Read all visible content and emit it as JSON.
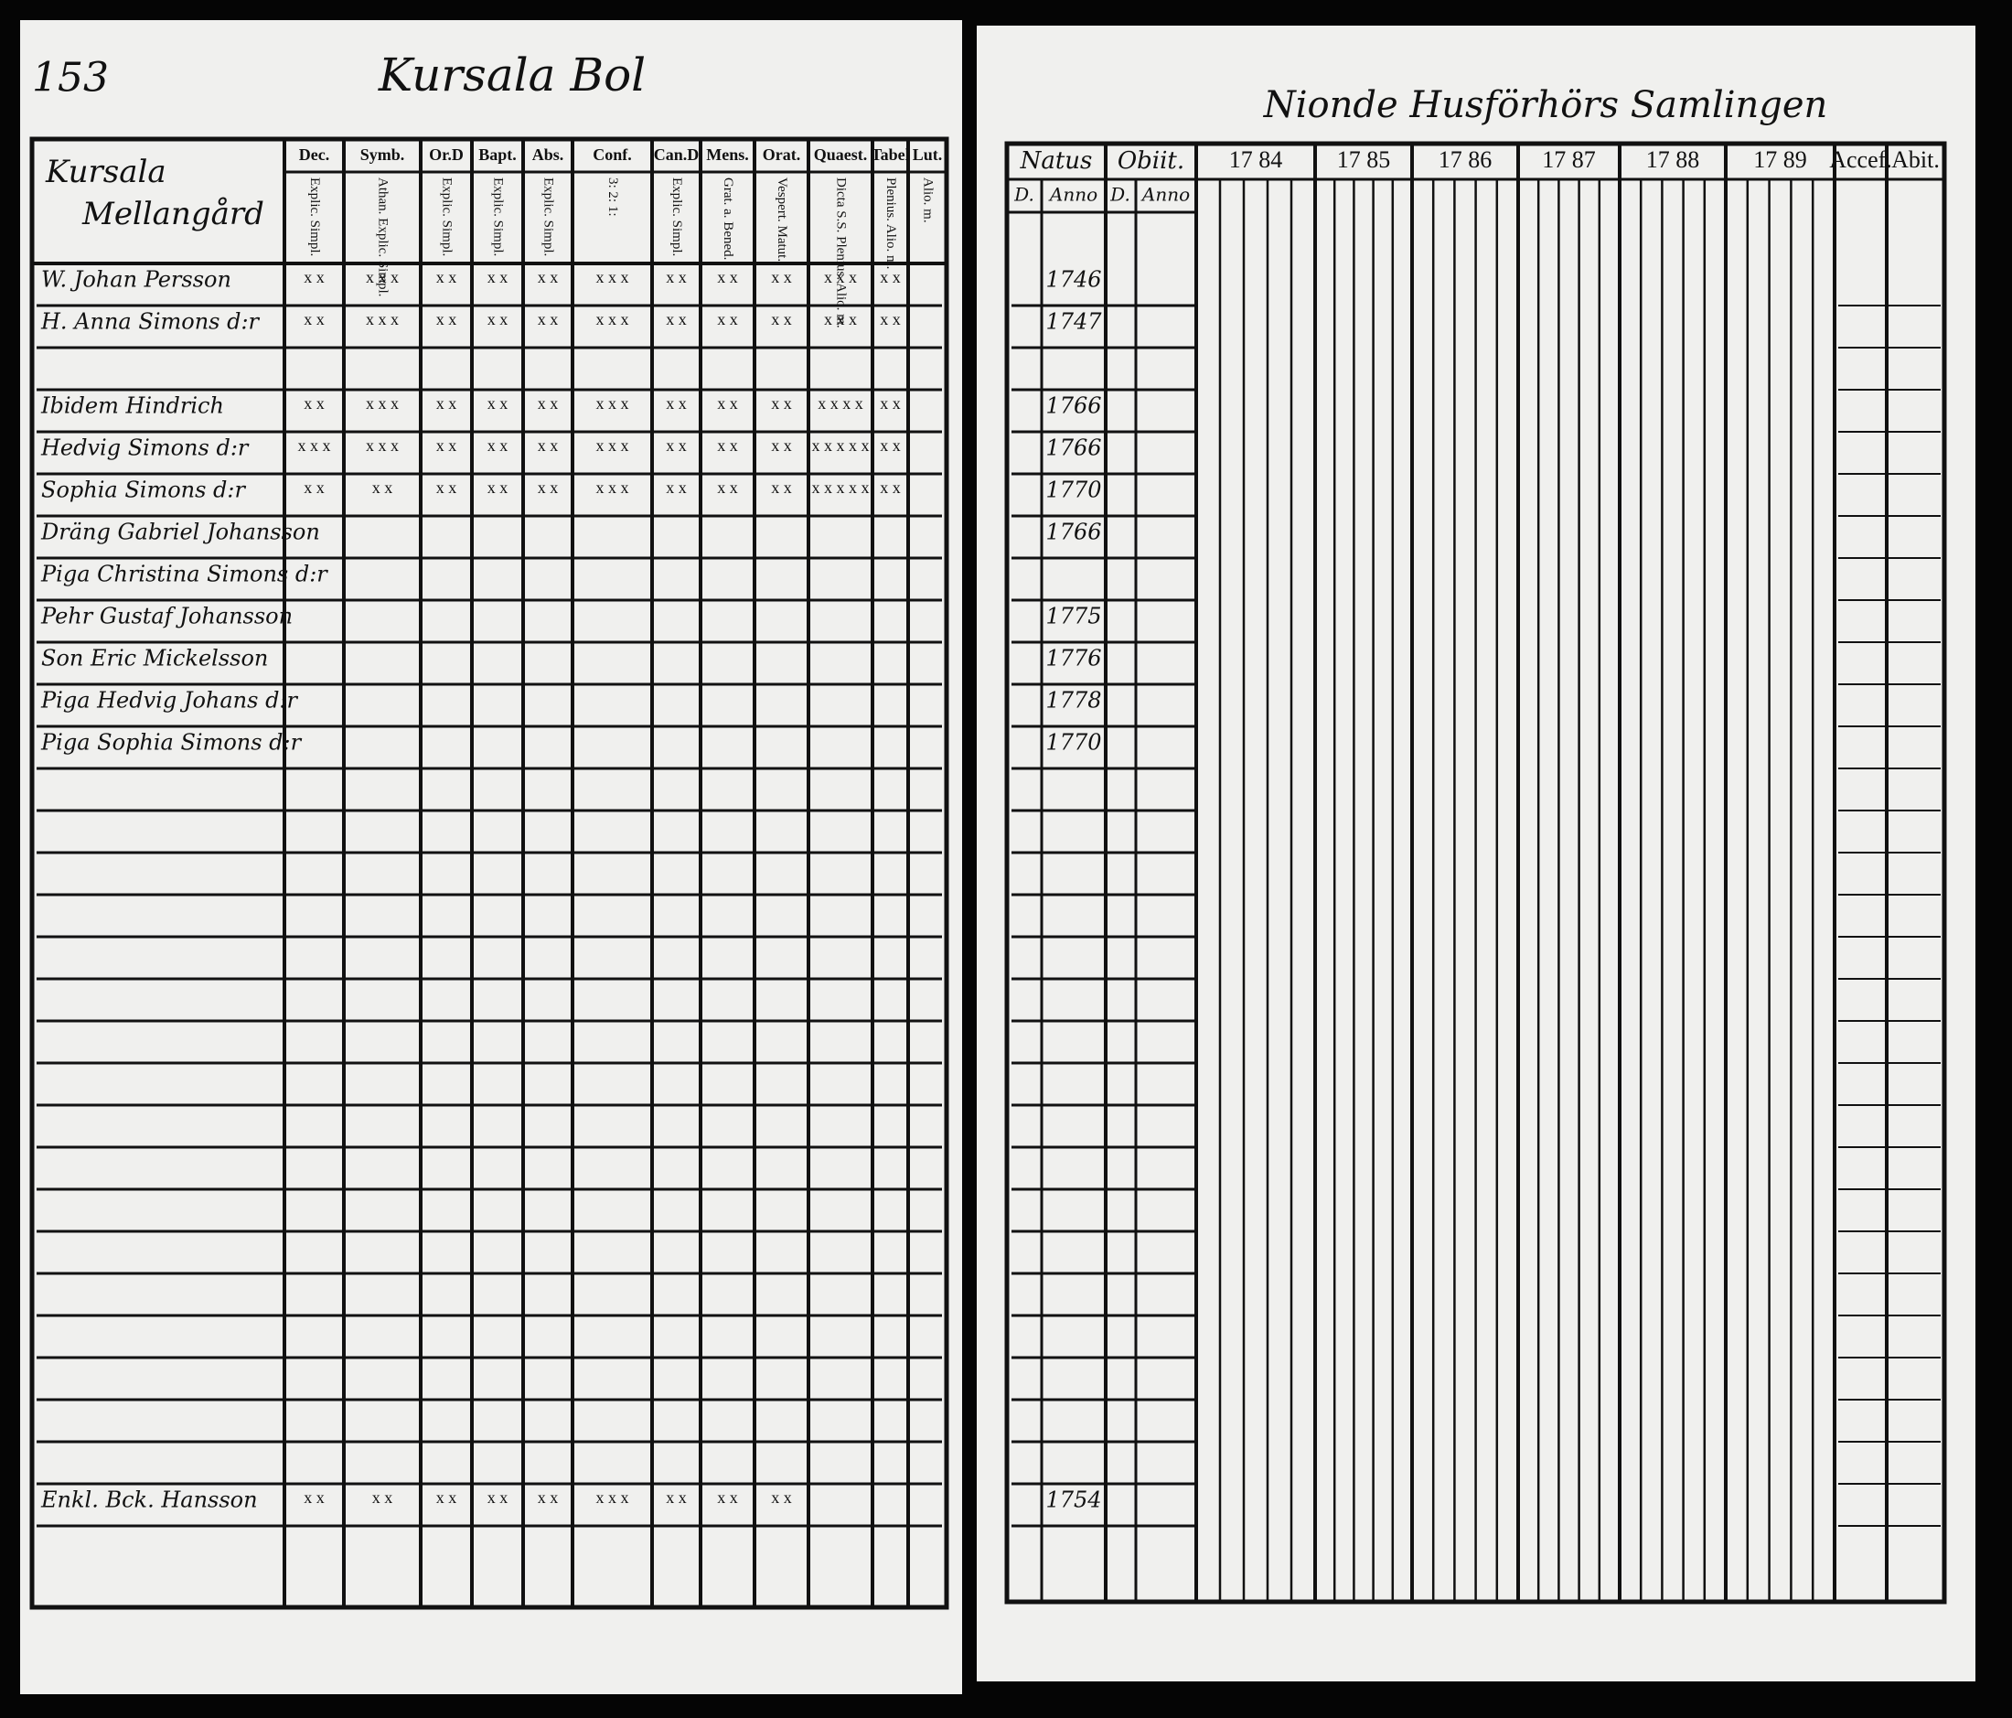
{
  "left_page": {
    "page_number": "153",
    "title": "Kursala Bol",
    "farm": [
      "Kursala",
      "Mellangård"
    ],
    "columns": [
      {
        "header": "Dec.",
        "sub": "Explic. Simpl."
      },
      {
        "header": "Symb.",
        "sub": "Athan. Explic. Simpl."
      },
      {
        "header": "Or.D",
        "sub": "Explic. Simpl."
      },
      {
        "header": "Bapt.",
        "sub": "Explic. Simpl."
      },
      {
        "header": "Abs.",
        "sub": "Explic. Simpl."
      },
      {
        "header": "Conf.",
        "sub": "3: 2: 1:"
      },
      {
        "header": "Can.D",
        "sub": "Explic. Simpl."
      },
      {
        "header": "Mens.",
        "sub": "Grat. a. Bened."
      },
      {
        "header": "Orat.",
        "sub": "Vespert. Matut."
      },
      {
        "header": "Quaest.",
        "sub": "Dicta S.S. Plenius. Alio. m."
      },
      {
        "header": "Tabel",
        "sub": "Plenius. Alio. m."
      },
      {
        "header": "Lut.",
        "sub": "Alio. m."
      }
    ],
    "households": [
      [
        {
          "name": "W. Johan Persson",
          "marks": [
            "x x",
            "x x x",
            "x x",
            "x x",
            "x x",
            "x x x",
            "x x",
            "x x",
            "x x",
            "x x x",
            "x x"
          ]
        },
        {
          "name": "H. Anna Simons d:r",
          "marks": [
            "x x",
            "x x x",
            "x x",
            "x x",
            "x x",
            "x x x",
            "x x",
            "x x",
            "x x",
            "x x x",
            "x x"
          ]
        }
      ],
      [
        {
          "name": "Ibidem Hindrich",
          "marks": [
            "x x",
            "x x x",
            "x x",
            "x x",
            "x x",
            "x x x",
            "x x",
            "x x",
            "x x",
            "x x x x",
            "x x"
          ]
        },
        {
          "name": "Hedvig Simons d:r",
          "marks": [
            "x x x",
            "x x x",
            "x x",
            "x x",
            "x x",
            "x x x",
            "x x",
            "x x",
            "x x",
            "x x x x x",
            "x x"
          ]
        },
        {
          "name": "Sophia Simons d:r",
          "marks": [
            "x x",
            "x x",
            "x x",
            "x x",
            "x x",
            "x x x",
            "x x",
            "x x",
            "x x",
            "x x x x x",
            "x x"
          ]
        },
        {
          "name": "Dräng Gabriel Johansson"
        },
        {
          "name": "Piga Christina Simons d:r"
        },
        {
          "name": "Pehr Gustaf Johansson"
        },
        {
          "name": "Son Eric Mickelsson"
        },
        {
          "name": "Piga Hedvig Johans d:r"
        },
        {
          "name": "Piga Sophia Simons d:r"
        }
      ]
    ],
    "last_row": {
      "name": "Enkl. Bck. Hansson",
      "marks": [
        "x x",
        "x x",
        "x x",
        "x x",
        "x x",
        "x x x",
        "x x",
        "x x",
        "x x"
      ]
    }
  },
  "right_page": {
    "title": "Nionde Husförhörs Samlingen",
    "columns": [
      "Natus",
      "Obiit.",
      "17 84",
      "17 85",
      "17 86",
      "17 87",
      "17 88",
      "17 89",
      "Accef.",
      "Abit."
    ],
    "sub_headers": [
      "D.",
      "Anno",
      "D.",
      "Anno"
    ],
    "households": [
      [
        "1746",
        "1747"
      ],
      [
        "1766",
        "1766",
        "1770",
        "1766",
        "1775",
        "1776",
        "1778",
        "1770"
      ]
    ],
    "last_row": "1754"
  }
}
